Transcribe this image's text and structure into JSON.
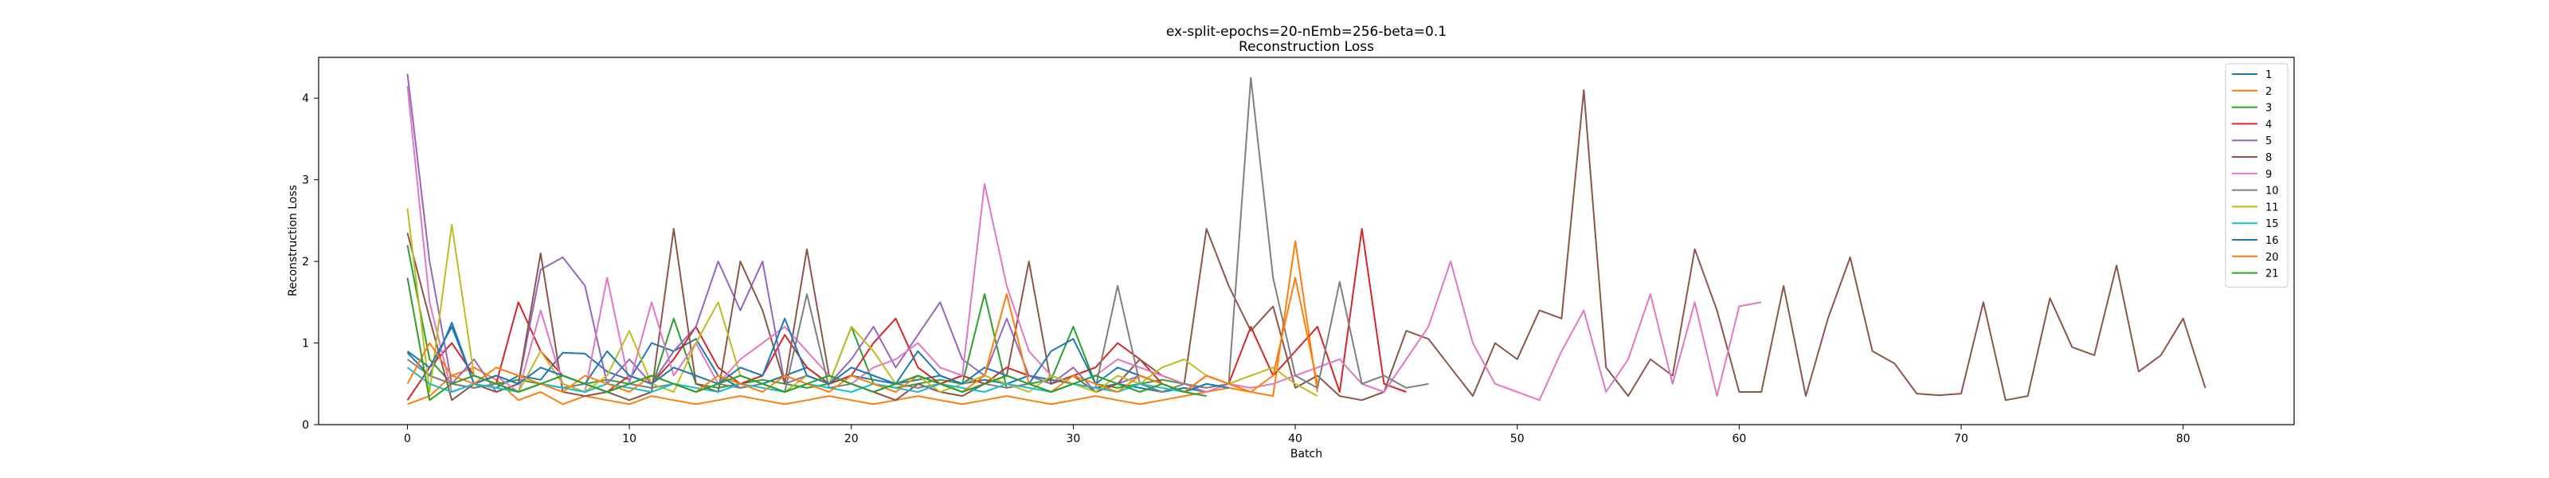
{
  "chart_data": {
    "type": "line",
    "title": "ex-split-epochs=20-nEmb=256-beta=0.1",
    "subtitle": "Reconstruction Loss",
    "xlabel": "Batch",
    "ylabel": "Reconstruction Loss",
    "xlim": [
      -4,
      85
    ],
    "ylim": [
      0,
      4.5
    ],
    "xticks": [
      0,
      10,
      20,
      30,
      40,
      50,
      60,
      70,
      80
    ],
    "yticks": [
      0,
      1,
      2,
      3,
      4
    ],
    "grid": false,
    "legend_position": "top-right",
    "series": [
      {
        "name": "1",
        "color": "#1f77b4",
        "values": [
          0.88,
          0.6,
          1.25,
          0.5,
          0.45,
          0.6,
          0.55,
          0.88,
          0.87,
          0.65,
          0.55,
          1.0,
          0.9,
          1.05,
          0.6,
          0.45,
          0.5,
          0.6,
          0.7,
          0.5,
          0.6,
          0.55,
          0.5,
          0.55,
          0.6,
          0.5,
          0.55,
          0.5,
          0.6,
          0.55,
          0.5,
          0.45,
          0.5,
          0.45,
          0.4,
          0.45,
          0.4
        ]
      },
      {
        "name": "2",
        "color": "#ff7f0e",
        "values": [
          0.25,
          0.35,
          0.6,
          0.7,
          0.55,
          0.3,
          0.4,
          0.25,
          0.35,
          0.3,
          0.25,
          0.35,
          0.3,
          0.25,
          0.3,
          0.35,
          0.3,
          0.25,
          0.3,
          0.35,
          0.3,
          0.25,
          0.3,
          0.35,
          0.3,
          0.25,
          0.3,
          0.35,
          0.3,
          0.25,
          0.3,
          0.35,
          0.3,
          0.25,
          0.3,
          0.35,
          0.4,
          0.45,
          0.4,
          0.35,
          2.25,
          0.4
        ]
      },
      {
        "name": "3",
        "color": "#2ca02c",
        "values": [
          2.2,
          0.8,
          0.5,
          0.45,
          0.5,
          0.55,
          0.5,
          0.45,
          0.5,
          0.55,
          0.5,
          0.45,
          1.3,
          0.5,
          0.45,
          0.5,
          0.55,
          0.5,
          0.45,
          0.5,
          1.2,
          0.5,
          0.45,
          0.5,
          0.55,
          0.5,
          1.6,
          0.45,
          0.5,
          0.55,
          1.2,
          0.5,
          0.45,
          0.5,
          0.55,
          0.5,
          0.45
        ]
      },
      {
        "name": "4",
        "color": "#d62728",
        "values": [
          0.3,
          0.7,
          1.0,
          0.6,
          0.5,
          1.5,
          0.9,
          0.6,
          0.5,
          0.4,
          0.6,
          0.5,
          0.8,
          1.2,
          0.7,
          0.5,
          0.6,
          1.1,
          0.7,
          0.5,
          0.6,
          1.0,
          1.3,
          0.7,
          0.5,
          0.6,
          0.5,
          0.7,
          0.6,
          0.5,
          0.6,
          0.7,
          1.0,
          0.8,
          0.5,
          0.4,
          0.6,
          0.5,
          1.2,
          0.6,
          0.9,
          1.2,
          0.4,
          2.4,
          0.5,
          0.4
        ]
      },
      {
        "name": "5",
        "color": "#9467bd",
        "values": [
          4.3,
          2.0,
          0.5,
          0.8,
          0.4,
          0.5,
          1.9,
          2.05,
          1.7,
          0.5,
          0.8,
          0.5,
          0.9,
          1.2,
          2.0,
          1.4,
          2.0,
          0.5,
          0.6,
          0.5,
          0.8,
          1.2,
          0.7,
          1.1,
          1.5,
          0.8,
          0.6,
          1.3,
          0.6,
          0.5,
          0.7,
          0.4,
          0.5,
          0.6,
          0.5,
          0.4
        ]
      },
      {
        "name": "8",
        "color": "#8c564b",
        "values": [
          2.35,
          1.3,
          0.3,
          0.5,
          0.4,
          0.5,
          2.1,
          0.4,
          0.35,
          0.4,
          0.3,
          0.4,
          2.4,
          0.5,
          0.4,
          2.0,
          1.4,
          0.5,
          2.15,
          0.6,
          0.5,
          0.4,
          0.3,
          0.5,
          0.4,
          0.35,
          0.5,
          0.6,
          2.0,
          0.5,
          0.6,
          0.4,
          0.5,
          0.8,
          0.6,
          0.5,
          2.4,
          1.7,
          1.15,
          1.45,
          0.45,
          0.6,
          0.35,
          0.3,
          0.4,
          1.15,
          1.05,
          0.7,
          0.35,
          1.0,
          0.8,
          1.4,
          1.3,
          4.1,
          0.7,
          0.35,
          0.8,
          0.6,
          2.15,
          1.4,
          0.4,
          0.4,
          1.7,
          0.35,
          1.3,
          2.05,
          0.9,
          0.75,
          0.38,
          0.36,
          0.38,
          1.5,
          0.3,
          0.35,
          1.55,
          0.95,
          0.85,
          1.95,
          0.65,
          0.85,
          1.3,
          0.45
        ]
      },
      {
        "name": "9",
        "color": "#e377c2",
        "values": [
          4.15,
          1.5,
          0.4,
          0.5,
          0.6,
          0.4,
          1.4,
          0.5,
          0.4,
          1.8,
          0.5,
          1.5,
          0.6,
          1.0,
          0.5,
          0.8,
          1.0,
          1.2,
          0.9,
          0.6,
          0.5,
          0.7,
          0.8,
          1.0,
          0.7,
          0.6,
          2.95,
          1.7,
          0.9,
          0.6,
          0.5,
          0.6,
          0.8,
          0.7,
          0.6,
          0.5,
          0.4,
          0.5,
          0.45,
          0.5,
          0.6,
          0.7,
          0.8,
          0.5,
          0.4,
          0.8,
          1.2,
          2.0,
          1.0,
          0.5,
          0.4,
          0.3,
          0.9,
          1.4,
          0.4,
          0.8,
          1.6,
          0.5,
          1.5,
          0.35,
          1.45,
          1.5
        ]
      },
      {
        "name": "10",
        "color": "#7f7f7f",
        "values": [
          0.8,
          0.6,
          0.5,
          0.45,
          0.5,
          0.4,
          0.5,
          0.45,
          0.5,
          0.4,
          0.5,
          0.45,
          0.5,
          0.4,
          0.5,
          0.45,
          0.5,
          0.4,
          1.6,
          0.45,
          0.5,
          0.4,
          0.5,
          0.45,
          0.5,
          0.4,
          0.5,
          0.45,
          0.5,
          0.4,
          0.5,
          0.45,
          1.7,
          0.5,
          0.4,
          0.5,
          0.45,
          0.5,
          4.25,
          1.8,
          0.6,
          0.45,
          1.75,
          0.5,
          0.6,
          0.45,
          0.5
        ]
      },
      {
        "name": "11",
        "color": "#bcbd22",
        "values": [
          2.65,
          0.4,
          2.45,
          0.6,
          0.5,
          0.4,
          0.9,
          0.5,
          0.4,
          0.6,
          1.15,
          0.5,
          0.4,
          1.0,
          1.5,
          0.6,
          0.5,
          0.4,
          0.6,
          0.5,
          1.2,
          0.9,
          0.5,
          0.6,
          0.4,
          0.5,
          0.6,
          0.5,
          0.4,
          0.6,
          0.5,
          0.4,
          0.6,
          0.5,
          0.7,
          0.8,
          0.6,
          0.5,
          0.6,
          0.7,
          0.5,
          0.35
        ]
      },
      {
        "name": "15",
        "color": "#17becf",
        "values": [
          0.7,
          0.5,
          0.4,
          0.5,
          0.45,
          0.4,
          0.5,
          0.45,
          0.4,
          0.5,
          0.45,
          0.4,
          0.5,
          0.45,
          0.4,
          0.5,
          0.45,
          0.4,
          0.5,
          0.45,
          0.4,
          0.5,
          0.45,
          0.4,
          0.5,
          0.45,
          0.4,
          0.5,
          0.45,
          0.4,
          0.5,
          0.45,
          0.4,
          0.5,
          0.45,
          0.4,
          0.5,
          0.45
        ]
      },
      {
        "name": "16",
        "color": "#1f77b4",
        "values": [
          0.9,
          0.7,
          1.2,
          0.5,
          0.6,
          0.5,
          0.7,
          0.6,
          0.5,
          0.9,
          0.6,
          0.5,
          0.7,
          0.6,
          0.5,
          0.7,
          0.6,
          1.3,
          0.6,
          0.5,
          0.7,
          0.6,
          0.5,
          0.9,
          0.6,
          0.5,
          0.7,
          0.6,
          0.5,
          0.9,
          1.05,
          0.5,
          0.7,
          0.6,
          0.5,
          0.4,
          0.5,
          0.45
        ]
      },
      {
        "name": "20",
        "color": "#ff7f0e",
        "values": [
          0.5,
          1.0,
          0.6,
          0.5,
          0.7,
          0.6,
          0.5,
          0.4,
          0.6,
          0.5,
          0.4,
          0.6,
          0.5,
          0.4,
          0.6,
          0.5,
          0.4,
          0.6,
          0.5,
          0.4,
          0.6,
          0.5,
          0.4,
          0.6,
          0.5,
          0.4,
          0.6,
          1.6,
          0.5,
          0.4,
          0.6,
          0.5,
          0.4,
          0.6,
          0.5,
          0.4,
          0.6,
          0.5,
          0.4,
          0.6,
          1.8,
          0.5
        ]
      },
      {
        "name": "21",
        "color": "#2ca02c",
        "values": [
          1.8,
          0.3,
          0.5,
          0.6,
          0.5,
          0.4,
          0.5,
          0.6,
          0.5,
          0.4,
          0.5,
          0.6,
          0.5,
          0.4,
          0.5,
          0.6,
          0.5,
          0.4,
          0.5,
          0.6,
          0.5,
          0.4,
          0.5,
          0.6,
          0.5,
          0.4,
          0.5,
          0.6,
          0.5,
          0.4,
          0.5,
          0.6,
          0.5,
          0.4,
          0.5,
          0.4,
          0.35
        ]
      }
    ]
  }
}
